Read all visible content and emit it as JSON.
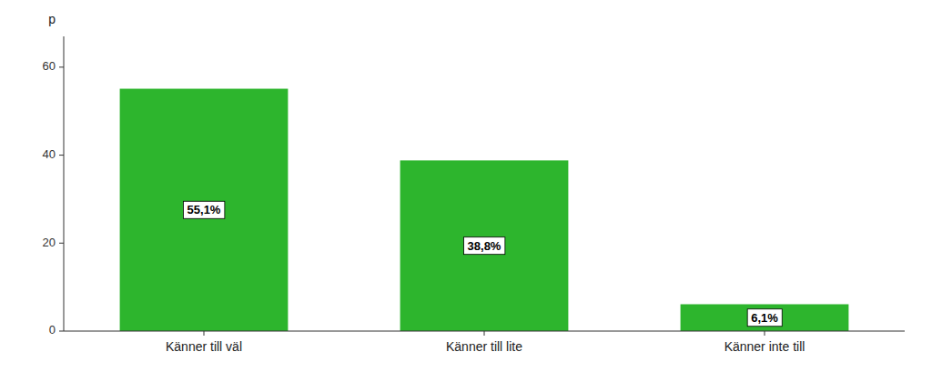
{
  "chart_data": {
    "type": "bar",
    "ylabel": "p",
    "categories": [
      "Känner till väl",
      "Känner till lite",
      "Känner inte till"
    ],
    "values": [
      55.1,
      38.8,
      6.1
    ],
    "value_labels": [
      "55,1%",
      "38,8%",
      "6,1%"
    ],
    "data_labels": true,
    "color": "#2db52d",
    "ylim": [
      0,
      67
    ],
    "yticks": [
      0,
      20,
      40,
      60
    ],
    "grid": false
  }
}
